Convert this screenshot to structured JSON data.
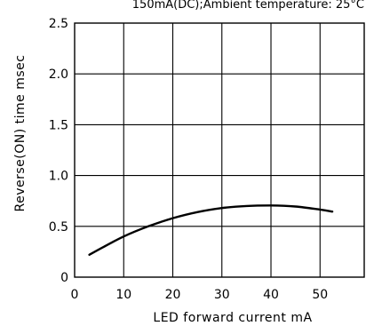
{
  "chart_data": {
    "type": "line",
    "title": "150mA(DC);Ambient temperature: 25°C",
    "xlabel": "LED forward current mA",
    "ylabel": "Reverse(ON) time msec",
    "xlim": [
      0,
      59
    ],
    "ylim": [
      0,
      2.5
    ],
    "x_ticks": [
      0,
      10,
      20,
      30,
      40,
      50
    ],
    "y_ticks": [
      0,
      0.5,
      1.0,
      1.5,
      2.0,
      2.5
    ],
    "x_tick_labels": [
      "0",
      "10",
      "20",
      "30",
      "40",
      "50"
    ],
    "y_tick_labels": [
      "0",
      "0.5",
      "1.0",
      "1.5",
      "2.0",
      "2.5"
    ],
    "grid": true,
    "series": [
      {
        "name": "",
        "x": [
          3,
          6,
          10,
          15,
          20,
          25,
          30,
          35,
          40,
          45,
          50,
          52.5
        ],
        "y": [
          0.22,
          0.3,
          0.4,
          0.5,
          0.58,
          0.64,
          0.68,
          0.7,
          0.705,
          0.695,
          0.665,
          0.645
        ]
      }
    ]
  }
}
